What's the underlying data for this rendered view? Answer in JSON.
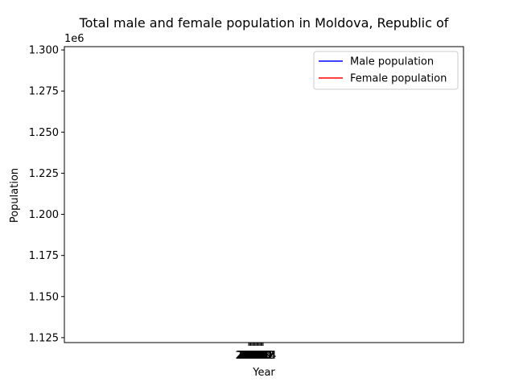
{
  "chart_data": {
    "type": "line",
    "title": "Total male and female population in Moldova, Republic of",
    "xlabel": "Year",
    "ylabel": "Population",
    "y_offset_label": "1e6",
    "ylim": [
      1122000,
      1302000
    ],
    "y_ticks": [
      1125000,
      1150000,
      1175000,
      1200000,
      1225000,
      1250000,
      1275000,
      1300000
    ],
    "y_tick_labels": [
      "1.125",
      "1.150",
      "1.175",
      "1.200",
      "1.225",
      "1.250",
      "1.275",
      "1.300"
    ],
    "x_tick_labels": [
      "2000",
      "2001",
      "2002",
      "2003",
      "2004",
      "2005",
      "2006",
      "2007",
      "2008",
      "2009",
      "2010",
      "2011",
      "2012",
      "2013",
      "2014"
    ],
    "grid": false,
    "legend_position": "top-right",
    "series": [
      {
        "name": "Male population",
        "color": "#0000ff",
        "values": []
      },
      {
        "name": "Female population",
        "color": "#ff0000",
        "values": []
      }
    ]
  }
}
